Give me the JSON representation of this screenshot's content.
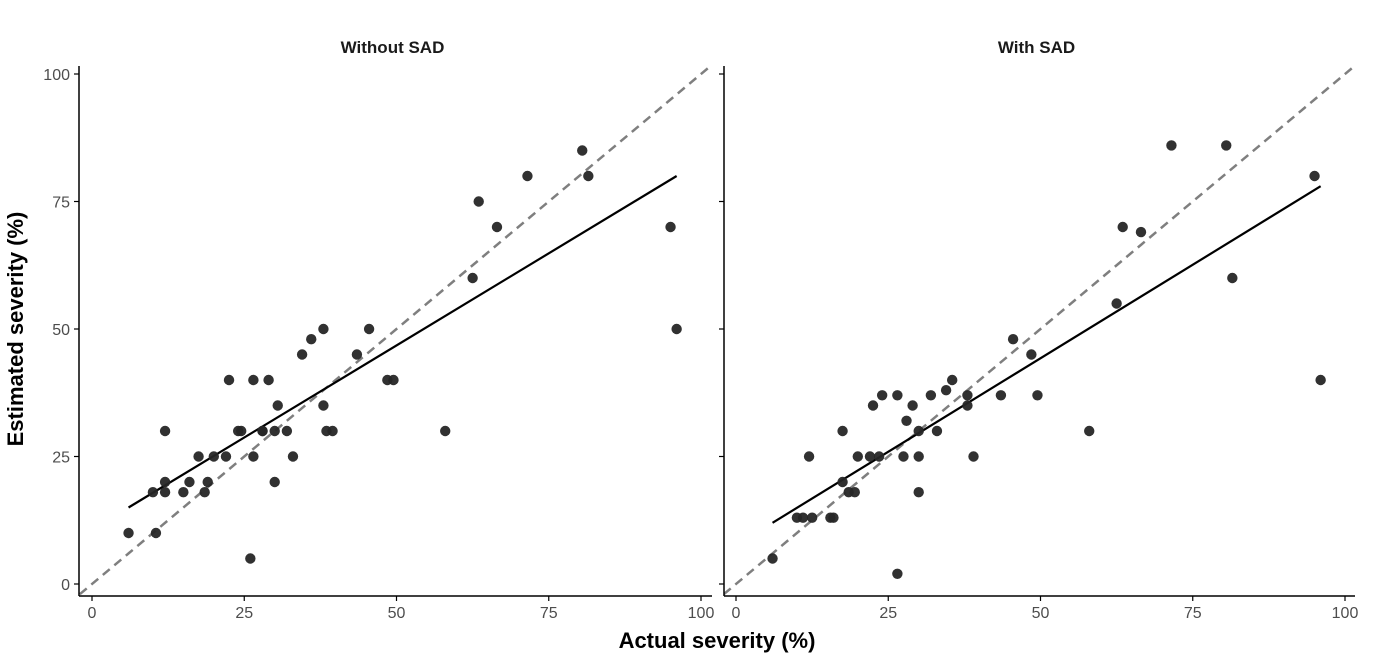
{
  "chart_data": [
    {
      "type": "scatter",
      "title": "Without SAD",
      "xlabel": "Actual severity (%)",
      "ylabel": "Estimated severity (%)",
      "xlim": [
        0,
        100
      ],
      "ylim": [
        0,
        100
      ],
      "x_ticks": [
        "0",
        "25",
        "50",
        "75",
        "100"
      ],
      "y_ticks": [
        "0",
        "25",
        "50",
        "75",
        "100"
      ],
      "grid": false,
      "reference_line": {
        "style": "dashed",
        "from": [
          0,
          0
        ],
        "to": [
          100,
          100
        ]
      },
      "fit_line": {
        "style": "solid",
        "from": [
          6,
          15
        ],
        "to": [
          96,
          80
        ]
      },
      "points": [
        [
          6,
          10
        ],
        [
          10,
          18
        ],
        [
          10.5,
          10
        ],
        [
          12,
          30
        ],
        [
          12,
          18
        ],
        [
          12,
          20
        ],
        [
          15,
          18
        ],
        [
          16,
          20
        ],
        [
          17.5,
          25
        ],
        [
          18.5,
          18
        ],
        [
          19,
          20
        ],
        [
          20,
          25
        ],
        [
          22,
          25
        ],
        [
          22.5,
          40
        ],
        [
          24,
          30
        ],
        [
          24.5,
          30
        ],
        [
          26,
          5
        ],
        [
          26.5,
          25
        ],
        [
          26.5,
          40
        ],
        [
          28,
          30
        ],
        [
          28,
          30
        ],
        [
          29,
          40
        ],
        [
          30,
          20
        ],
        [
          30,
          30
        ],
        [
          30.5,
          35
        ],
        [
          32,
          30
        ],
        [
          33,
          25
        ],
        [
          34.5,
          45
        ],
        [
          36,
          48
        ],
        [
          38,
          50
        ],
        [
          38,
          35
        ],
        [
          38.5,
          30
        ],
        [
          39.5,
          30
        ],
        [
          43.5,
          45
        ],
        [
          45.5,
          50
        ],
        [
          48.5,
          40
        ],
        [
          49.5,
          40
        ],
        [
          58,
          30
        ],
        [
          62.5,
          60
        ],
        [
          63.5,
          75
        ],
        [
          66.5,
          70
        ],
        [
          71.5,
          80
        ],
        [
          80.5,
          85
        ],
        [
          81.5,
          80
        ],
        [
          95,
          70
        ],
        [
          96,
          50
        ]
      ]
    },
    {
      "type": "scatter",
      "title": "With SAD",
      "xlabel": "Actual severity (%)",
      "ylabel": "Estimated severity (%)",
      "xlim": [
        0,
        100
      ],
      "ylim": [
        0,
        100
      ],
      "x_ticks": [
        "0",
        "25",
        "50",
        "75",
        "100"
      ],
      "y_ticks": [
        "0",
        "25",
        "50",
        "75",
        "100"
      ],
      "grid": false,
      "reference_line": {
        "style": "dashed",
        "from": [
          0,
          0
        ],
        "to": [
          100,
          100
        ]
      },
      "fit_line": {
        "style": "solid",
        "from": [
          6,
          12
        ],
        "to": [
          96,
          78
        ]
      },
      "points": [
        [
          6,
          5
        ],
        [
          10,
          13
        ],
        [
          11,
          13
        ],
        [
          12,
          25
        ],
        [
          12.5,
          13
        ],
        [
          15.5,
          13
        ],
        [
          16,
          13
        ],
        [
          17.5,
          30
        ],
        [
          17.5,
          20
        ],
        [
          18.5,
          18
        ],
        [
          19.5,
          18
        ],
        [
          20,
          25
        ],
        [
          22,
          25
        ],
        [
          22.5,
          35
        ],
        [
          23.5,
          25
        ],
        [
          24,
          37
        ],
        [
          26.5,
          2
        ],
        [
          26.5,
          37
        ],
        [
          27.5,
          25
        ],
        [
          28,
          32
        ],
        [
          29,
          35
        ],
        [
          30,
          30
        ],
        [
          30,
          25
        ],
        [
          30,
          18
        ],
        [
          32,
          37
        ],
        [
          33,
          30
        ],
        [
          34.5,
          38
        ],
        [
          35.5,
          40
        ],
        [
          38,
          37
        ],
        [
          38,
          35
        ],
        [
          39,
          25
        ],
        [
          43.5,
          37
        ],
        [
          45.5,
          48
        ],
        [
          48.5,
          45
        ],
        [
          49.5,
          37
        ],
        [
          58,
          30
        ],
        [
          62.5,
          55
        ],
        [
          63.5,
          70
        ],
        [
          66.5,
          69
        ],
        [
          71.5,
          86
        ],
        [
          80.5,
          86
        ],
        [
          81.5,
          60
        ],
        [
          95,
          80
        ],
        [
          96,
          40
        ]
      ]
    }
  ]
}
